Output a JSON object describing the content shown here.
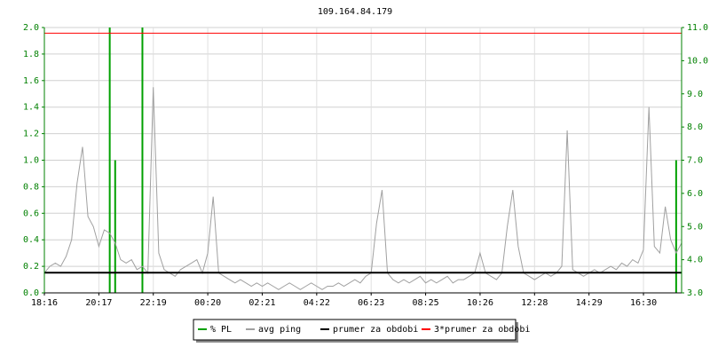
{
  "chart_data": {
    "type": "line",
    "title": "109.164.84.179",
    "categories": [
      "18:16",
      null,
      null,
      null,
      null,
      null,
      null,
      null,
      null,
      null,
      "20:17",
      null,
      null,
      null,
      null,
      null,
      null,
      null,
      null,
      null,
      "22:19",
      null,
      null,
      null,
      null,
      null,
      null,
      null,
      null,
      null,
      "00:20",
      null,
      null,
      null,
      null,
      null,
      null,
      null,
      null,
      null,
      "02:21",
      null,
      null,
      null,
      null,
      null,
      null,
      null,
      null,
      null,
      "04:22",
      null,
      null,
      null,
      null,
      null,
      null,
      null,
      null,
      null,
      "06:23",
      null,
      null,
      null,
      null,
      null,
      null,
      null,
      null,
      null,
      "08:25",
      null,
      null,
      null,
      null,
      null,
      null,
      null,
      null,
      null,
      "10:26",
      null,
      null,
      null,
      null,
      null,
      null,
      null,
      null,
      null,
      "12:28",
      null,
      null,
      null,
      null,
      null,
      null,
      null,
      null,
      null,
      "14:29",
      null,
      null,
      null,
      null,
      null,
      null,
      null,
      null,
      null,
      "16:30",
      null,
      null,
      null,
      null,
      null,
      null,
      null
    ],
    "ylim": [
      0,
      2
    ],
    "yticks": [
      {
        "value": 0,
        "label": "0.0"
      },
      0.2,
      0.4,
      0.6,
      0.8,
      {
        "value": 1,
        "label": "1.0"
      },
      1.2,
      1.4,
      1.6,
      1.8,
      {
        "value": 2,
        "label": "2.0"
      }
    ],
    "y2lim": [
      3,
      11
    ],
    "y2ticks": [
      {
        "value": 3,
        "label": "3.0"
      },
      {
        "value": 4,
        "label": "4.0"
      },
      {
        "value": 5,
        "label": "5.0"
      },
      {
        "value": 6,
        "label": "6.0"
      },
      {
        "value": 7,
        "label": "7.0"
      },
      {
        "value": 8,
        "label": "8.0"
      },
      {
        "value": 9,
        "label": "9.0"
      },
      {
        "value": 10,
        "label": "10.0"
      },
      {
        "value": 11,
        "label": "11.0"
      }
    ],
    "grid": true,
    "series": [
      {
        "name": "% PL",
        "color": "#00a000",
        "style": "impulse",
        "values": [
          0,
          0,
          0,
          0,
          0,
          0,
          0,
          0,
          0,
          0,
          0,
          0,
          2,
          1,
          0,
          0,
          0,
          0,
          2,
          0,
          0,
          0,
          0,
          0,
          0,
          0,
          0,
          0,
          0,
          0,
          0,
          0,
          0,
          0,
          0,
          0,
          0,
          0,
          0,
          0,
          0,
          0,
          0,
          0,
          0,
          0,
          0,
          0,
          0,
          0,
          0,
          0,
          0,
          0,
          0,
          0,
          0,
          0,
          0,
          0,
          0,
          0,
          0,
          0,
          0,
          0,
          0,
          0,
          0,
          0,
          0,
          0,
          0,
          0,
          0,
          0,
          0,
          0,
          0,
          0,
          0,
          0,
          0,
          0,
          0,
          0,
          0,
          0,
          0,
          0,
          0,
          0,
          0,
          0,
          0,
          0,
          0,
          0,
          0,
          0,
          0,
          0,
          0,
          0,
          0,
          0,
          0,
          0,
          0,
          0,
          0,
          0,
          0,
          0,
          0,
          0,
          1,
          0
        ]
      },
      {
        "name": "avg ping",
        "color": "#a0a0a0",
        "axis": "y2",
        "values": [
          3.6,
          3.8,
          3.9,
          3.8,
          4.1,
          4.6,
          6.3,
          7.4,
          5.3,
          5.0,
          4.4,
          4.9,
          4.8,
          4.5,
          4.0,
          3.9,
          4.0,
          3.7,
          3.8,
          3.6,
          9.2,
          4.2,
          3.7,
          3.6,
          3.5,
          3.7,
          3.8,
          3.9,
          4.0,
          3.6,
          4.2,
          5.9,
          3.6,
          3.5,
          3.4,
          3.3,
          3.4,
          3.3,
          3.2,
          3.3,
          3.2,
          3.3,
          3.2,
          3.1,
          3.2,
          3.3,
          3.2,
          3.1,
          3.2,
          3.3,
          3.2,
          3.1,
          3.2,
          3.2,
          3.3,
          3.2,
          3.3,
          3.4,
          3.3,
          3.5,
          3.6,
          5.1,
          6.1,
          3.6,
          3.4,
          3.3,
          3.4,
          3.3,
          3.4,
          3.5,
          3.3,
          3.4,
          3.3,
          3.4,
          3.5,
          3.3,
          3.4,
          3.4,
          3.5,
          3.6,
          4.2,
          3.6,
          3.5,
          3.4,
          3.6,
          5.0,
          6.1,
          4.4,
          3.6,
          3.5,
          3.4,
          3.5,
          3.6,
          3.5,
          3.6,
          3.8,
          7.9,
          3.7,
          3.6,
          3.5,
          3.6,
          3.7,
          3.6,
          3.7,
          3.8,
          3.7,
          3.9,
          3.8,
          4.0,
          3.9,
          4.3,
          8.6,
          4.4,
          4.2,
          5.6,
          4.6,
          4.2,
          4.5
        ]
      },
      {
        "name": "prumer za obdobi",
        "color": "#000000",
        "axis": "y2",
        "value": 3.61
      },
      {
        "name": "3*prumer za obdobi",
        "color": "#ff0000",
        "axis": "y2",
        "value": 10.83
      }
    ]
  }
}
